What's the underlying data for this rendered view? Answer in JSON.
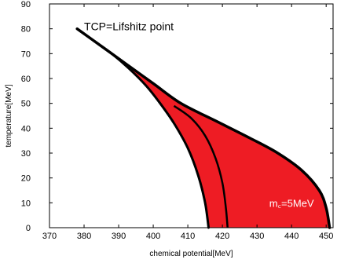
{
  "chart_data": {
    "type": "area",
    "title": "",
    "xlabel": "chemical potential[MeV]",
    "ylabel": "temperature[MeV]",
    "xlim": [
      370,
      452
    ],
    "ylim": [
      0,
      90
    ],
    "xticks": [
      370,
      380,
      390,
      400,
      410,
      420,
      430,
      440,
      450
    ],
    "yticks": [
      0,
      10,
      20,
      30,
      40,
      50,
      60,
      70,
      80,
      90
    ],
    "grid": false,
    "fill_color": "#ee1c24",
    "line_color": "#000000",
    "region": {
      "left_boundary": [
        {
          "x": 378,
          "y": 80
        },
        {
          "x": 383,
          "y": 75
        },
        {
          "x": 388,
          "y": 70
        },
        {
          "x": 393,
          "y": 64
        },
        {
          "x": 398,
          "y": 57
        },
        {
          "x": 402,
          "y": 50
        },
        {
          "x": 406,
          "y": 42
        },
        {
          "x": 410,
          "y": 32
        },
        {
          "x": 413,
          "y": 21
        },
        {
          "x": 415,
          "y": 10
        },
        {
          "x": 416,
          "y": 0
        }
      ],
      "right_boundary": [
        {
          "x": 378,
          "y": 80
        },
        {
          "x": 385,
          "y": 73
        },
        {
          "x": 392,
          "y": 66
        },
        {
          "x": 400,
          "y": 58
        },
        {
          "x": 408,
          "y": 50
        },
        {
          "x": 418,
          "y": 43
        },
        {
          "x": 428,
          "y": 36
        },
        {
          "x": 436,
          "y": 30
        },
        {
          "x": 443,
          "y": 23
        },
        {
          "x": 448,
          "y": 15
        },
        {
          "x": 450,
          "y": 8
        },
        {
          "x": 451,
          "y": 0
        }
      ]
    },
    "series": [
      {
        "name": "",
        "label": "m꜀=5MeV",
        "values": [
          {
            "x": 406,
            "y": 49
          },
          {
            "x": 411,
            "y": 44
          },
          {
            "x": 415,
            "y": 37
          },
          {
            "x": 418,
            "y": 28
          },
          {
            "x": 420,
            "y": 18
          },
          {
            "x": 421,
            "y": 8
          },
          {
            "x": 421.5,
            "y": 0
          }
        ]
      }
    ],
    "annotations": [
      {
        "text": "TCP=Lifshitz point",
        "x": 380,
        "y": 81
      },
      {
        "text": "m꜀=5MeV",
        "x": 440,
        "y": 10
      }
    ]
  }
}
